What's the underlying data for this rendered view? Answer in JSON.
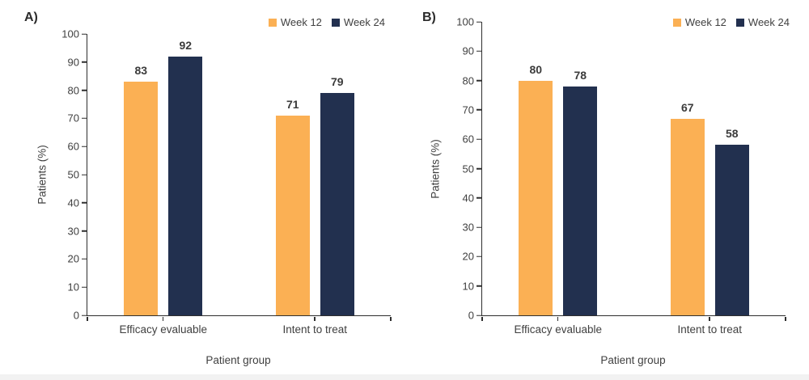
{
  "style": {
    "axis_color": "#2E2E2E",
    "text_color": "#404040",
    "value_label_color": "#3B3B3B",
    "footer_strip_color": "#F2F2F2",
    "week12_color": "#FBB054",
    "week24_color": "#22304F"
  },
  "chart_data": [
    {
      "type": "bar",
      "panel_label": "A)",
      "categories": [
        "Efficacy evaluable",
        "Intent to treat"
      ],
      "series": [
        {
          "name": "Week 12",
          "color": "#FBB054",
          "values": [
            83,
            71
          ]
        },
        {
          "name": "Week 24",
          "color": "#22304F",
          "values": [
            92,
            79
          ]
        }
      ],
      "xlabel": "Patient group",
      "ylabel": "Patients (%)",
      "ylim": [
        0,
        100
      ],
      "yticks": [
        0,
        10,
        20,
        30,
        40,
        50,
        60,
        70,
        80,
        90,
        100
      ],
      "grid": false,
      "data_labels": true,
      "legend_position": "top-right"
    },
    {
      "type": "bar",
      "panel_label": "B)",
      "categories": [
        "Efficacy evaluable",
        "Intent to treat"
      ],
      "series": [
        {
          "name": "Week 12",
          "color": "#FBB054",
          "values": [
            80,
            67
          ]
        },
        {
          "name": "Week 24",
          "color": "#22304F",
          "values": [
            78,
            58
          ]
        }
      ],
      "xlabel": "Patient group",
      "ylabel": "Patients (%)",
      "ylim": [
        0,
        100
      ],
      "yticks": [
        0,
        10,
        20,
        30,
        40,
        50,
        60,
        70,
        80,
        90,
        100
      ],
      "grid": false,
      "data_labels": true,
      "legend_position": "top-right"
    }
  ]
}
